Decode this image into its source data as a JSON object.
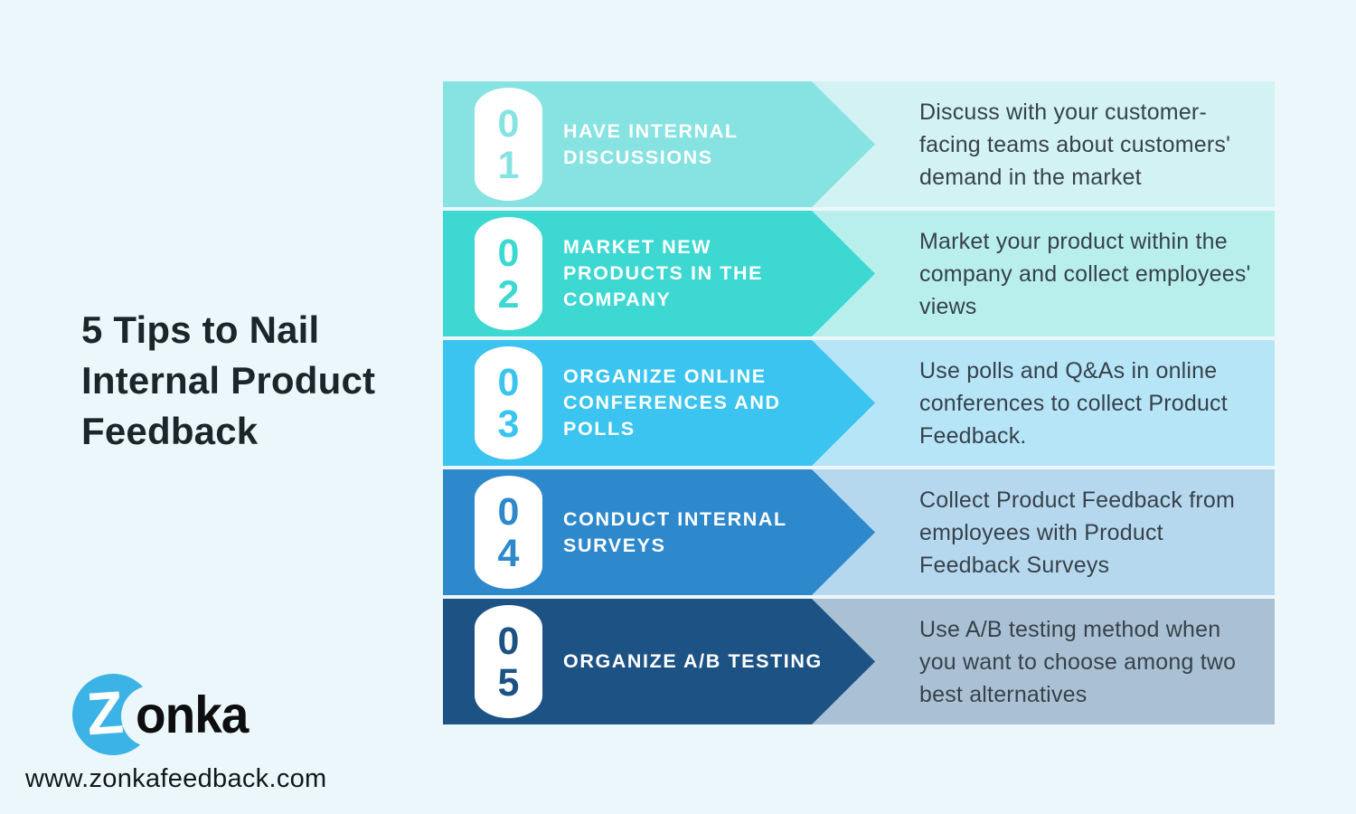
{
  "page": {
    "background": "#ECF7FC",
    "title": "5 Tips to Nail Internal Product Feedback",
    "website": "www.zonkafeedback.com"
  },
  "logo": {
    "z": "Z",
    "rest": "onka",
    "circle_color": "#3CB3E6",
    "text_color": "#0E0E0E"
  },
  "steps": [
    {
      "digits": [
        "0",
        "1"
      ],
      "label": "HAVE INTERNAL DISCUSSIONS",
      "description": "Discuss with your customer-facing teams about customers' demand in the market",
      "banner_color": "#87E3E1",
      "panel_color": "#D3F2F4"
    },
    {
      "digits": [
        "0",
        "2"
      ],
      "label": "MARKET NEW PRODUCTS IN THE COMPANY",
      "description": "Market your product within the company and collect employees' views",
      "banner_color": "#3DD8D2",
      "panel_color": "#B8EFEC"
    },
    {
      "digits": [
        "0",
        "3"
      ],
      "label": "ORGANIZE ONLINE CONFERENCES AND POLLS",
      "description": "Use polls and Q&As in online conferences to collect Product Feedback.",
      "banner_color": "#3AC4EF",
      "panel_color": "#B6E5F8"
    },
    {
      "digits": [
        "0",
        "4"
      ],
      "label": "CONDUCT INTERNAL SURVEYS",
      "description": "Collect Product Feedback from employees with Product Feedback Surveys",
      "banner_color": "#2E88CC",
      "panel_color": "#B6D8EF"
    },
    {
      "digits": [
        "0",
        "5"
      ],
      "label": "ORGANIZE A/B TESTING",
      "description": "Use A/B testing method when you want to choose among two best alternatives",
      "banner_color": "#1D5384",
      "panel_color": "#AAC1D5"
    }
  ]
}
